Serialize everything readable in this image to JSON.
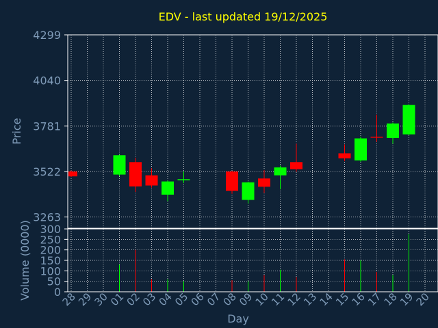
{
  "chart_data": {
    "type": "candlestick",
    "title": "EDV - last updated 19/12/2025",
    "xlabel": "Day",
    "ylabel_price": "Price",
    "ylabel_volume": "Volume (0000)",
    "x_ticks": [
      "28",
      "29",
      "30",
      "01",
      "02",
      "03",
      "04",
      "05",
      "06",
      "07",
      "08",
      "09",
      "10",
      "11",
      "12",
      "13",
      "14",
      "15",
      "16",
      "17",
      "18",
      "19",
      "20"
    ],
    "price_ticks": [
      "3263",
      "3522",
      "3781",
      "4040",
      "4299"
    ],
    "price_range": [
      3199,
      4299
    ],
    "volume_ticks": [
      "0",
      "50",
      "100",
      "150",
      "200",
      "250",
      "300"
    ],
    "volume_range": [
      0,
      300
    ],
    "grid": true,
    "colors": {
      "background": "#0f2236",
      "up": "#00ff00",
      "down": "#ff0000",
      "title": "#ffff00",
      "axis_text": "#7f9bb8",
      "grid": "#ffffff",
      "frame": "#ffffff"
    },
    "candles": [
      {
        "day": "28",
        "open": 3522,
        "close": 3494,
        "high": 3527,
        "low": 3490,
        "volume": 0
      },
      {
        "day": "01",
        "open": 3504,
        "close": 3614,
        "high": 3618,
        "low": 3495,
        "volume": 130
      },
      {
        "day": "02",
        "open": 3575,
        "close": 3437,
        "high": 3600,
        "low": 3405,
        "volume": 200
      },
      {
        "day": "03",
        "open": 3500,
        "close": 3442,
        "high": 3540,
        "low": 3430,
        "volume": 60
      },
      {
        "day": "04",
        "open": 3390,
        "close": 3465,
        "high": 3470,
        "low": 3353,
        "volume": 60
      },
      {
        "day": "05",
        "open": 3475,
        "close": 3475,
        "high": 3522,
        "low": 3455,
        "volume": 50
      },
      {
        "day": "08",
        "open": 3522,
        "close": 3412,
        "high": 3525,
        "low": 3395,
        "volume": 55
      },
      {
        "day": "09",
        "open": 3360,
        "close": 3460,
        "high": 3465,
        "low": 3340,
        "volume": 50
      },
      {
        "day": "10",
        "open": 3482,
        "close": 3435,
        "high": 3530,
        "low": 3400,
        "volume": 80
      },
      {
        "day": "11",
        "open": 3500,
        "close": 3545,
        "high": 3555,
        "low": 3420,
        "volume": 105
      },
      {
        "day": "12",
        "open": 3575,
        "close": 3535,
        "high": 3680,
        "low": 3520,
        "volume": 70
      },
      {
        "day": "15",
        "open": 3625,
        "close": 3597,
        "high": 3675,
        "low": 3580,
        "volume": 155
      },
      {
        "day": "16",
        "open": 3585,
        "close": 3710,
        "high": 3720,
        "low": 3577,
        "volume": 150
      },
      {
        "day": "17",
        "open": 3717,
        "close": 3713,
        "high": 3845,
        "low": 3690,
        "volume": 95
      },
      {
        "day": "18",
        "open": 3712,
        "close": 3795,
        "high": 3800,
        "low": 3680,
        "volume": 80
      },
      {
        "day": "19",
        "open": 3733,
        "close": 3900,
        "high": 3905,
        "low": 3727,
        "volume": 275
      }
    ]
  }
}
